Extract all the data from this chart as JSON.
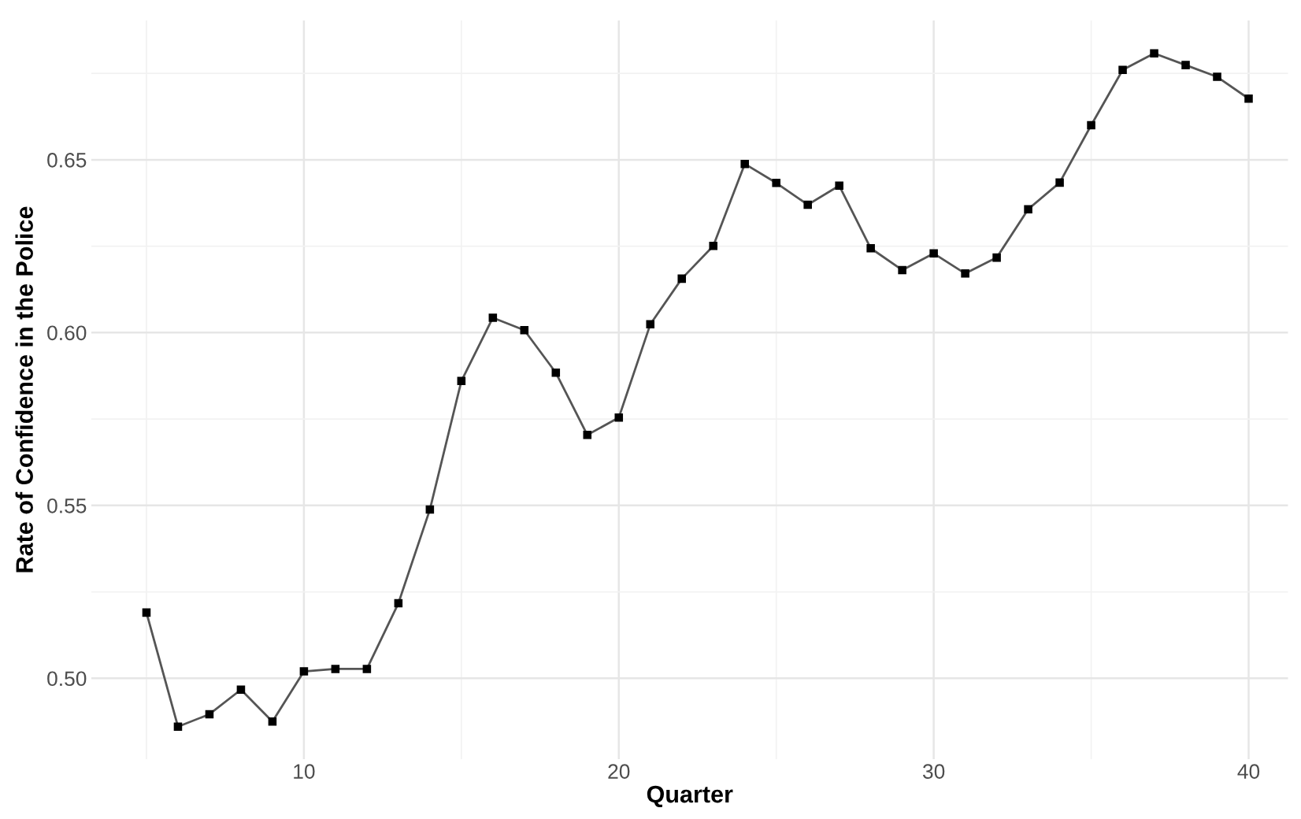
{
  "chart_data": {
    "type": "line",
    "xlabel": "Quarter",
    "ylabel": "Rate of Confidence in the Police",
    "x": [
      5,
      6,
      7,
      8,
      9,
      10,
      11,
      12,
      13,
      14,
      15,
      16,
      17,
      18,
      19,
      20,
      21,
      22,
      23,
      24,
      25,
      26,
      27,
      28,
      29,
      30,
      31,
      32,
      33,
      34,
      35,
      36,
      37,
      38,
      39,
      40
    ],
    "series": [
      {
        "color": "#555555",
        "values": [
          0.519,
          0.486,
          0.4896,
          0.4967,
          0.4875,
          0.502,
          0.5027,
          0.5027,
          0.5217,
          0.5488,
          0.586,
          0.6043,
          0.6007,
          0.5884,
          0.5704,
          0.5754,
          0.6024,
          0.6156,
          0.6251,
          0.6488,
          0.6433,
          0.637,
          0.6425,
          0.6244,
          0.6181,
          0.6229,
          0.6171,
          0.6217,
          0.6357,
          0.6434,
          0.66,
          0.676,
          0.6808,
          0.6774,
          0.674,
          0.6677
        ]
      }
    ],
    "xlim": [
      3.25,
      41.25
    ],
    "ylim": [
      0.4766,
      0.6903
    ],
    "xticks": [
      10,
      20,
      30,
      40
    ],
    "yticks": [
      {
        "value": 0.5,
        "label": "0.50"
      },
      {
        "value": 0.55,
        "label": "0.55"
      },
      {
        "value": 0.6,
        "label": "0.60"
      },
      {
        "value": 0.65,
        "label": "0.65"
      }
    ],
    "grid": true,
    "marker": "square",
    "line_style": "solid"
  }
}
